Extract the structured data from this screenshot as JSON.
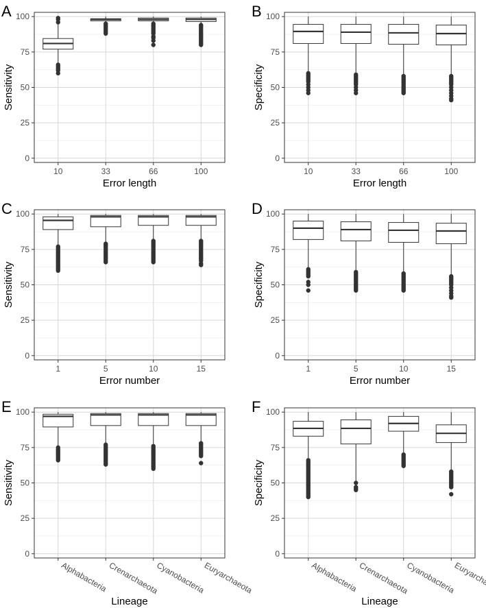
{
  "chart_data": [
    {
      "id": "A",
      "type": "box",
      "xlabel": "Error length",
      "ylabel": "Sensitivity",
      "categories": [
        "10",
        "33",
        "66",
        "100"
      ],
      "ylim": [
        -3,
        103
      ],
      "yticks": [
        0,
        25,
        50,
        75,
        100
      ],
      "grid": true,
      "rotate_x": false,
      "boxes": [
        {
          "q1": 77,
          "median": 81,
          "q3": 84.5,
          "whisker_low": 67,
          "whisker_high": 95,
          "outliers": [
            66,
            65,
            64,
            63,
            62,
            60,
            96,
            98,
            99
          ]
        },
        {
          "q1": 97,
          "median": 98,
          "q3": 98.5,
          "whisker_low": 95,
          "whisker_high": 100,
          "outliers": [
            95,
            94,
            93,
            92,
            91,
            90,
            89,
            88
          ]
        },
        {
          "q1": 97,
          "median": 98,
          "q3": 99,
          "whisker_low": 96,
          "whisker_high": 100,
          "outliers": [
            95,
            94,
            93,
            92,
            91,
            90,
            89,
            88,
            86,
            85,
            83,
            80
          ]
        },
        {
          "q1": 96.5,
          "median": 98,
          "q3": 99,
          "whisker_low": 95,
          "whisker_high": 100,
          "outliers": [
            94,
            93,
            92,
            91,
            90,
            89,
            88,
            87,
            86,
            85,
            84,
            83,
            82,
            81,
            80
          ]
        }
      ]
    },
    {
      "id": "B",
      "type": "box",
      "xlabel": "Error length",
      "ylabel": "Specificity",
      "categories": [
        "10",
        "33",
        "66",
        "100"
      ],
      "ylim": [
        -3,
        103
      ],
      "yticks": [
        0,
        25,
        50,
        75,
        100
      ],
      "grid": true,
      "rotate_x": false,
      "boxes": [
        {
          "q1": 81,
          "median": 89.5,
          "q3": 94.5,
          "whisker_low": 61,
          "whisker_high": 100,
          "outliers": [
            60,
            59,
            58,
            57,
            56,
            55,
            54,
            52,
            50,
            48,
            46
          ]
        },
        {
          "q1": 81,
          "median": 89,
          "q3": 94.5,
          "whisker_low": 60,
          "whisker_high": 100,
          "outliers": [
            59,
            58,
            57,
            56,
            55,
            54,
            53,
            52,
            50,
            48,
            46
          ]
        },
        {
          "q1": 80.5,
          "median": 88.5,
          "q3": 94.5,
          "whisker_low": 59,
          "whisker_high": 100,
          "outliers": [
            58,
            57,
            56,
            55,
            54,
            53,
            52,
            51,
            50,
            49,
            48,
            47,
            46
          ]
        },
        {
          "q1": 80,
          "median": 88,
          "q3": 94,
          "whisker_low": 59,
          "whisker_high": 100,
          "outliers": [
            58,
            57,
            56,
            55,
            54,
            53,
            52,
            50,
            48,
            46,
            44,
            42,
            41
          ]
        }
      ]
    },
    {
      "id": "C",
      "type": "box",
      "xlabel": "Error number",
      "ylabel": "Sensitivity",
      "categories": [
        "1",
        "5",
        "10",
        "15"
      ],
      "ylim": [
        -3,
        103
      ],
      "yticks": [
        0,
        25,
        50,
        75,
        100
      ],
      "grid": true,
      "rotate_x": false,
      "boxes": [
        {
          "q1": 89,
          "median": 95.5,
          "q3": 98,
          "whisker_low": 78,
          "whisker_high": 100,
          "outliers": [
            77,
            76,
            75,
            74,
            73,
            72,
            71,
            70,
            69,
            68,
            67,
            66,
            65,
            64,
            63,
            62,
            61,
            60
          ]
        },
        {
          "q1": 91,
          "median": 98,
          "q3": 99,
          "whisker_low": 80,
          "whisker_high": 100,
          "outliers": [
            79,
            78,
            77,
            76,
            75,
            74,
            73,
            72,
            71,
            70,
            69,
            68,
            67,
            66
          ]
        },
        {
          "q1": 92,
          "median": 98,
          "q3": 99,
          "whisker_low": 82,
          "whisker_high": 100,
          "outliers": [
            81,
            80,
            79,
            78,
            77,
            76,
            75,
            74,
            73,
            72,
            71,
            70,
            69,
            68,
            67,
            66
          ]
        },
        {
          "q1": 92,
          "median": 98,
          "q3": 99,
          "whisker_low": 82,
          "whisker_high": 100,
          "outliers": [
            81,
            80,
            79,
            78,
            77,
            76,
            75,
            74,
            73,
            72,
            71,
            70,
            69,
            68,
            67,
            65,
            64
          ]
        }
      ]
    },
    {
      "id": "D",
      "type": "box",
      "xlabel": "Error number",
      "ylabel": "Specificity",
      "categories": [
        "1",
        "5",
        "10",
        "15"
      ],
      "ylim": [
        -3,
        103
      ],
      "yticks": [
        0,
        25,
        50,
        75,
        100
      ],
      "grid": true,
      "rotate_x": false,
      "boxes": [
        {
          "q1": 82,
          "median": 90,
          "q3": 95,
          "whisker_low": 62,
          "whisker_high": 100,
          "outliers": [
            61,
            60,
            59,
            58,
            57,
            56,
            52,
            50,
            46
          ]
        },
        {
          "q1": 81,
          "median": 89,
          "q3": 94.5,
          "whisker_low": 60,
          "whisker_high": 100,
          "outliers": [
            59,
            58,
            57,
            56,
            55,
            54,
            53,
            52,
            51,
            50,
            49,
            48,
            47,
            46
          ]
        },
        {
          "q1": 80,
          "median": 88.5,
          "q3": 94,
          "whisker_low": 59,
          "whisker_high": 100,
          "outliers": [
            58,
            57,
            56,
            55,
            54,
            53,
            52,
            51,
            50,
            49,
            48,
            47,
            46
          ]
        },
        {
          "q1": 79,
          "median": 88,
          "q3": 93.5,
          "whisker_low": 57,
          "whisker_high": 100,
          "outliers": [
            56,
            55,
            54,
            53,
            52,
            51,
            50,
            48,
            46,
            44,
            42,
            41
          ]
        }
      ]
    },
    {
      "id": "E",
      "type": "box",
      "xlabel": "Lineage",
      "ylabel": "Sensitivity",
      "categories": [
        "Alphabacteria",
        "Crenarchaeota",
        "Cyanobacteria",
        "Euryarchaeota"
      ],
      "ylim": [
        -3,
        103
      ],
      "yticks": [
        0,
        25,
        50,
        75,
        100
      ],
      "grid": true,
      "rotate_x": true,
      "boxes": [
        {
          "q1": 89.5,
          "median": 97,
          "q3": 98.5,
          "whisker_low": 76,
          "whisker_high": 100,
          "outliers": [
            75,
            74,
            73,
            72,
            71,
            70,
            69,
            68,
            67,
            66
          ]
        },
        {
          "q1": 90.5,
          "median": 98,
          "q3": 99,
          "whisker_low": 78,
          "whisker_high": 100,
          "outliers": [
            77,
            76,
            75,
            74,
            73,
            72,
            71,
            70,
            69,
            68,
            67,
            66,
            65,
            64,
            63
          ]
        },
        {
          "q1": 90.5,
          "median": 98,
          "q3": 99,
          "whisker_low": 77,
          "whisker_high": 100,
          "outliers": [
            76,
            75,
            74,
            73,
            72,
            71,
            70,
            69,
            68,
            67,
            66,
            65,
            64,
            63,
            62,
            61,
            60
          ]
        },
        {
          "q1": 90.5,
          "median": 98,
          "q3": 99,
          "whisker_low": 79,
          "whisker_high": 100,
          "outliers": [
            78,
            77,
            76,
            75,
            74,
            73,
            72,
            71,
            70,
            69,
            64
          ]
        }
      ]
    },
    {
      "id": "F",
      "type": "box",
      "xlabel": "Lineage",
      "ylabel": "Specificity",
      "categories": [
        "Alphabacteria",
        "Crenarchaeota",
        "Cyanobacteria",
        "Euryarchaeota"
      ],
      "ylim": [
        -3,
        103
      ],
      "yticks": [
        0,
        25,
        50,
        75,
        100
      ],
      "grid": true,
      "rotate_x": true,
      "boxes": [
        {
          "q1": 83,
          "median": 88.5,
          "q3": 93.5,
          "whisker_low": 67,
          "whisker_high": 100,
          "outliers": [
            66,
            65,
            64,
            63,
            62,
            61,
            60,
            59,
            58,
            57,
            56,
            55,
            54,
            53,
            52,
            51,
            50,
            49,
            48,
            47,
            46,
            45,
            44,
            43,
            42,
            41,
            40
          ]
        },
        {
          "q1": 77.5,
          "median": 88.5,
          "q3": 94.5,
          "whisker_low": 51,
          "whisker_high": 100,
          "outliers": [
            50,
            47,
            46,
            45
          ]
        },
        {
          "q1": 86.5,
          "median": 92,
          "q3": 97,
          "whisker_low": 71,
          "whisker_high": 100,
          "outliers": [
            70,
            69,
            68,
            67,
            66,
            65,
            64,
            63,
            62
          ]
        },
        {
          "q1": 78.5,
          "median": 85,
          "q3": 91,
          "whisker_low": 59,
          "whisker_high": 100,
          "outliers": [
            58,
            57,
            56,
            55,
            54,
            53,
            52,
            51,
            50,
            49,
            48,
            47,
            42
          ]
        }
      ]
    }
  ]
}
